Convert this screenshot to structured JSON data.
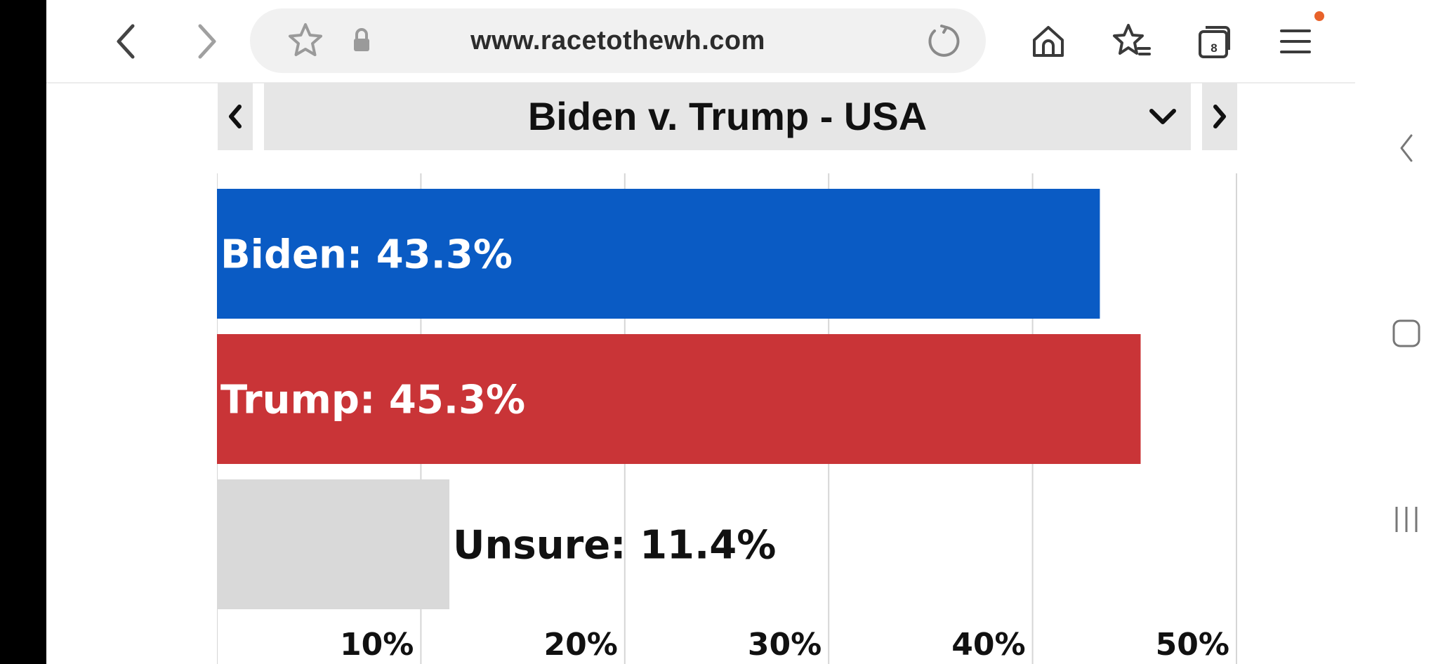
{
  "browser": {
    "url": "www.racetothewh.com",
    "tab_count": "8",
    "icons": {
      "back": "chevron-left-icon",
      "forward": "chevron-right-icon",
      "bookmark": "star-icon",
      "lock": "lock-icon",
      "reload": "reload-icon",
      "home": "home-icon",
      "bookmarks": "bookmarks-icon",
      "tabs": "tabs-icon",
      "menu": "hamburger-menu-icon"
    },
    "notification_color": "#e8622a"
  },
  "selector": {
    "title": "Biden v. Trump - USA"
  },
  "chart_data": {
    "type": "bar",
    "orientation": "horizontal",
    "categories": [
      "Biden",
      "Trump",
      "Unsure"
    ],
    "values": [
      43.3,
      45.3,
      11.4
    ],
    "bar_labels": [
      "Biden: 43.3%",
      "Trump: 45.3%",
      "Unsure: 11.4%"
    ],
    "colors": [
      "#0a5bc4",
      "#c93437",
      "#d9d9d9"
    ],
    "label_colors": [
      "#ffffff",
      "#ffffff",
      "#111111"
    ],
    "xlim": [
      0,
      50
    ],
    "xticks": [
      10,
      20,
      30,
      40,
      50
    ],
    "xtick_labels": [
      "10%",
      "20%",
      "30%",
      "40%",
      "50%"
    ],
    "grid": true
  }
}
